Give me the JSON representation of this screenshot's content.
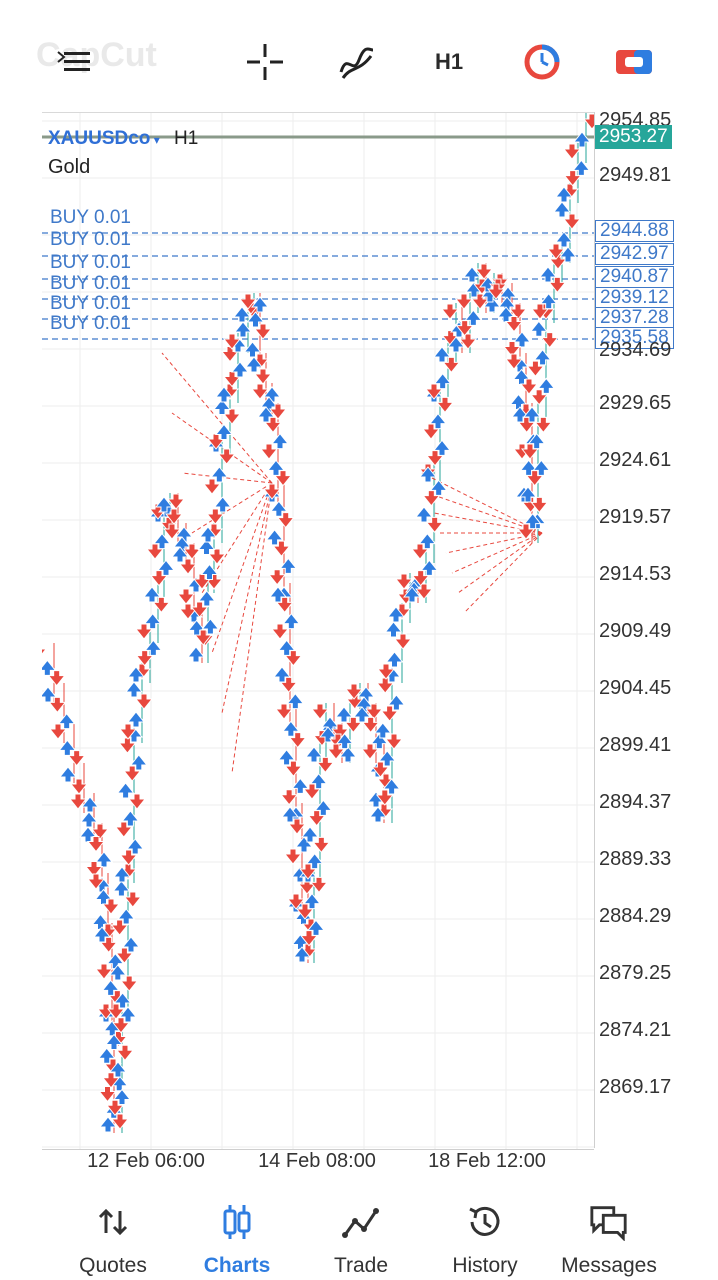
{
  "watermark": "CapCut",
  "toolbar": {
    "timeframe": "H1",
    "menu_icon": "menu-icon",
    "crosshair_icon": "crosshair-icon",
    "indicators_icon": "indicators-icon",
    "timer_icon": "timer-icon",
    "trade_icon": "trade-icon"
  },
  "chart": {
    "symbol": "XAUUSDco",
    "timeframe": "H1",
    "instrument": "Gold",
    "current_price": "2953.27",
    "top_price": "2954.85",
    "accent": "#2f7de0",
    "up_color": "#2f7de0",
    "down_color": "#e8483e",
    "price_labels": [
      "2949.81",
      "2929.65",
      "2924.61",
      "2919.57",
      "2914.53",
      "2909.49",
      "2904.45",
      "2899.41",
      "2894.37",
      "2889.33",
      "2884.29",
      "2879.25",
      "2874.21",
      "2869.17"
    ],
    "hidden_price": "2934.69",
    "positions": [
      {
        "label": "BUY 0.01",
        "price": "2944.88"
      },
      {
        "label": "BUY 0.01",
        "price": "2942.97"
      },
      {
        "label": "BUY 0.01",
        "price": "2940.87"
      },
      {
        "label": "BUY 0.01",
        "price": "2939.12"
      },
      {
        "label": "BUY 0.01",
        "price": "2937.28"
      },
      {
        "label": "BUY 0.01",
        "price": "2935.58"
      }
    ],
    "time_labels": [
      "12 Feb 06:00",
      "14 Feb 08:00",
      "18 Feb 12:00"
    ]
  },
  "nav": [
    {
      "label": "Quotes",
      "icon": "quotes-icon",
      "active": false
    },
    {
      "label": "Charts",
      "icon": "charts-icon",
      "active": true
    },
    {
      "label": "Trade",
      "icon": "trade-line-icon",
      "active": false
    },
    {
      "label": "History",
      "icon": "history-icon",
      "active": false
    },
    {
      "label": "Messages",
      "icon": "messages-icon",
      "active": false
    }
  ]
}
